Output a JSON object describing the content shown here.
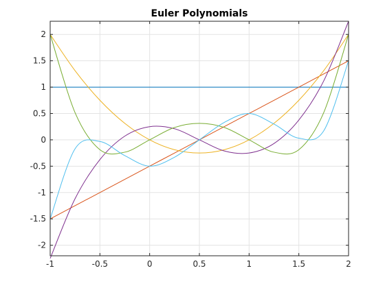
{
  "chart_data": {
    "type": "line",
    "title": "Euler Polynomials",
    "xlabel": "",
    "ylabel": "",
    "xlim": [
      -1,
      2
    ],
    "ylim": [
      -2.2,
      2.25
    ],
    "grid": true,
    "xticks": [
      -1,
      -0.5,
      0,
      0.5,
      1,
      1.5,
      2
    ],
    "xtick_labels": [
      "-1",
      "-0.5",
      "0",
      "0.5",
      "1",
      "1.5",
      "2"
    ],
    "yticks": [
      -2,
      -1.5,
      -1,
      -0.5,
      0,
      0.5,
      1,
      1.5,
      2
    ],
    "ytick_labels": [
      "-2",
      "-1.5",
      "-1",
      "-0.5",
      "0",
      "0.5",
      "1",
      "1.5",
      "2"
    ],
    "x": [
      -1,
      -0.75,
      -0.5,
      -0.25,
      0,
      0.25,
      0.5,
      0.75,
      1,
      1.25,
      1.5,
      1.75,
      2
    ],
    "series": [
      {
        "color": "#0072BD",
        "values": [
          1,
          1,
          1,
          1,
          1,
          1,
          1,
          1,
          1,
          1,
          1,
          1,
          1
        ]
      },
      {
        "color": "#D95319",
        "values": [
          -1.5,
          -1.25,
          -1,
          -0.75,
          -0.5,
          -0.25,
          0,
          0.25,
          0.5,
          0.75,
          1,
          1.25,
          1.5
        ]
      },
      {
        "color": "#EDB120",
        "values": [
          2,
          1.3125,
          0.75,
          0.3125,
          0,
          -0.1875,
          -0.25,
          -0.1875,
          0,
          0.3125,
          0.75,
          1.3125,
          2
        ]
      },
      {
        "color": "#7E2F8E",
        "values": [
          -2.25,
          -1.1172,
          -0.375,
          0.0703,
          0.25,
          0.2109,
          0,
          -0.2109,
          -0.25,
          -0.0703,
          0.375,
          1.1172,
          2.25
        ]
      },
      {
        "color": "#77AC30",
        "values": [
          2,
          0.5156,
          -0.1875,
          -0.2344,
          0,
          0.2344,
          0.3125,
          0.2344,
          0,
          -0.2344,
          -0.1875,
          0.5156,
          2
        ]
      },
      {
        "color": "#4DBEEE",
        "values": [
          -1.5,
          -0.1699,
          -0.0313,
          -0.2988,
          -0.5,
          -0.3301,
          0,
          0.3301,
          0.5,
          0.2988,
          0.0313,
          0.1699,
          1.5
        ]
      }
    ]
  }
}
